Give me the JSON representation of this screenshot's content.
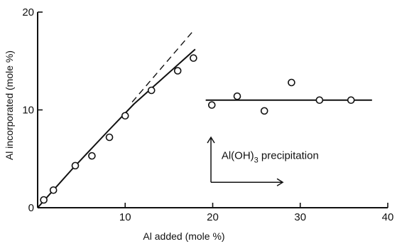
{
  "chart_data": {
    "type": "scatter",
    "xlabel": "Al added (mole %)",
    "ylabel": "Al incorporated (mole %)",
    "xlim": [
      0,
      40
    ],
    "ylim": [
      0,
      20
    ],
    "xticks": [
      "10",
      "20",
      "30",
      "40"
    ],
    "yticks": [
      "0",
      "10",
      "20"
    ],
    "grid": false,
    "series": [
      {
        "points": [
          [
            0.7,
            0.8
          ],
          [
            1.8,
            1.8
          ],
          [
            4.3,
            4.3
          ],
          [
            6.2,
            5.3
          ],
          [
            8.2,
            7.2
          ],
          [
            10.0,
            9.4
          ],
          [
            13.0,
            12.0
          ],
          [
            16.0,
            14.0
          ],
          [
            17.8,
            15.3
          ],
          [
            19.9,
            10.5
          ],
          [
            22.8,
            11.4
          ],
          [
            25.9,
            9.9
          ],
          [
            29.0,
            12.8
          ],
          [
            32.2,
            11.0
          ],
          [
            35.8,
            11.0
          ]
        ]
      }
    ],
    "curves": {
      "fit_before": [
        [
          0,
          0
        ],
        [
          4,
          4.0
        ],
        [
          8,
          7.8
        ],
        [
          11,
          10.6
        ],
        [
          14,
          13.0
        ],
        [
          18,
          16.2
        ]
      ],
      "dashed_trend": [
        [
          10.8,
          10.8
        ],
        [
          17.7,
          18.0
        ]
      ],
      "plateau": [
        [
          19.2,
          11.0
        ],
        [
          38.2,
          11.0
        ]
      ]
    },
    "annotation": {
      "text": "Al(OH)",
      "subscript": "3",
      "suffix": " precipitation",
      "arrow_origin": [
        19.8,
        2.6
      ],
      "arrow_up_to": [
        19.8,
        7.2
      ],
      "arrow_right_to": [
        28.0,
        2.6
      ],
      "text_anchor": [
        21.0,
        5.0
      ]
    }
  }
}
